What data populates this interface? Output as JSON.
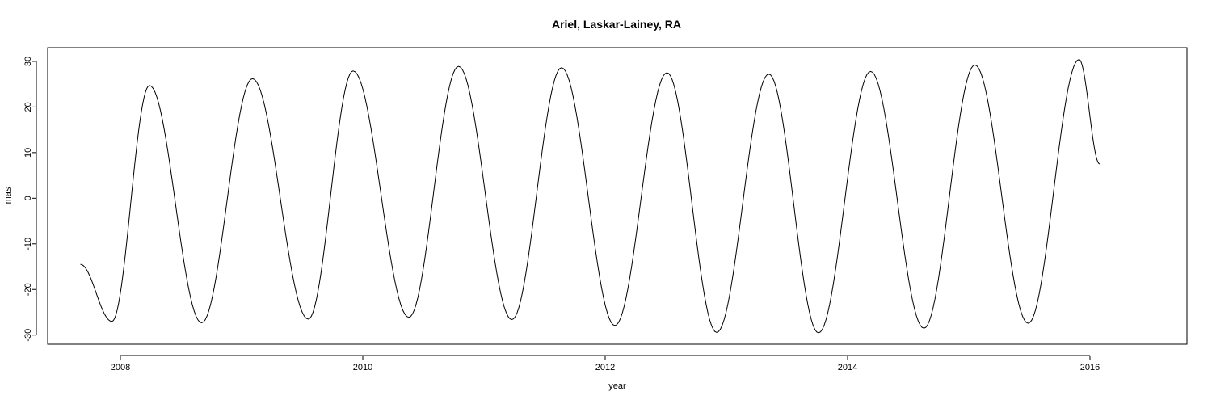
{
  "chart_data": {
    "type": "line",
    "title": "Ariel, Laskar-Lainey, RA",
    "xlabel": "year",
    "ylabel": "mas",
    "xlim": [
      2007.4,
      2016.8
    ],
    "ylim": [
      -32,
      33
    ],
    "x_ticks": [
      2008,
      2010,
      2012,
      2014,
      2016
    ],
    "y_ticks": [
      -30,
      -20,
      -10,
      0,
      10,
      20,
      30
    ],
    "grid": false,
    "legend": "none",
    "series": [
      {
        "extrema": [
          [
            2007.67,
            -14.5
          ],
          [
            2007.93,
            -27.0
          ],
          [
            2008.24,
            24.7
          ],
          [
            2008.67,
            -27.3
          ],
          [
            2009.09,
            26.2
          ],
          [
            2009.55,
            -26.5
          ],
          [
            2009.92,
            27.9
          ],
          [
            2010.38,
            -26.1
          ],
          [
            2010.79,
            28.9
          ],
          [
            2011.23,
            -26.6
          ],
          [
            2011.64,
            28.6
          ],
          [
            2012.08,
            -27.9
          ],
          [
            2012.51,
            27.5
          ],
          [
            2012.92,
            -29.4
          ],
          [
            2013.35,
            27.2
          ],
          [
            2013.76,
            -29.5
          ],
          [
            2014.19,
            27.8
          ],
          [
            2014.63,
            -28.5
          ],
          [
            2015.05,
            29.2
          ],
          [
            2015.49,
            -27.4
          ],
          [
            2015.91,
            30.4
          ],
          [
            2016.08,
            7.5
          ]
        ]
      }
    ]
  }
}
